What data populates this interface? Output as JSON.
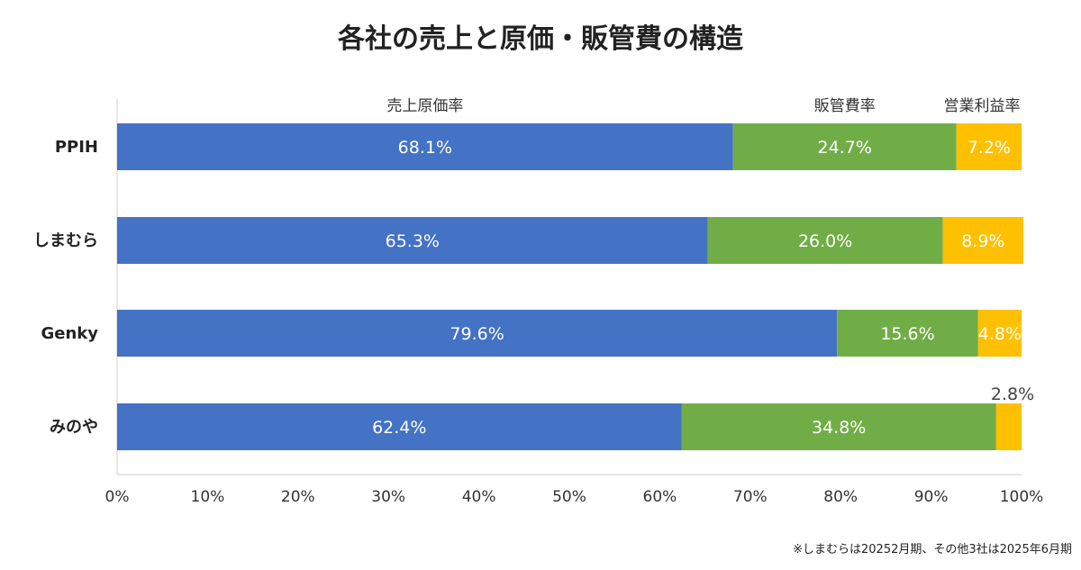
{
  "chart_data": {
    "type": "bar",
    "orientation": "horizontal",
    "stacked": true,
    "title": "各社の売上と原価・販管費の構造",
    "categories": [
      "PPIH",
      "しまむら",
      "Genky",
      "みのや"
    ],
    "series": [
      {
        "name": "売上原価率",
        "color": "#4472C4",
        "values": [
          68.1,
          65.3,
          79.6,
          62.4
        ],
        "labels": [
          "68.1%",
          "65.3%",
          "79.6%",
          "62.4%"
        ]
      },
      {
        "name": "販管費率",
        "color": "#70AD47",
        "values": [
          24.7,
          26.0,
          15.6,
          34.8
        ],
        "labels": [
          "24.7%",
          "26.0%",
          "15.6%",
          "34.8%"
        ]
      },
      {
        "name": "営業利益率",
        "color": "#FFC000",
        "values": [
          7.2,
          8.9,
          4.8,
          2.8
        ],
        "labels": [
          "7.2%",
          "8.9%",
          "4.8%",
          "2.8%"
        ]
      }
    ],
    "xlim": [
      0,
      100
    ],
    "x_ticks": [
      "0%",
      "10%",
      "20%",
      "30%",
      "40%",
      "50%",
      "60%",
      "70%",
      "80%",
      "90%",
      "100%"
    ],
    "grid": false,
    "legend_placement": "top (series names above bars)"
  },
  "footnote": "※しまむらは20252月期、その他3社は2025年6月期"
}
